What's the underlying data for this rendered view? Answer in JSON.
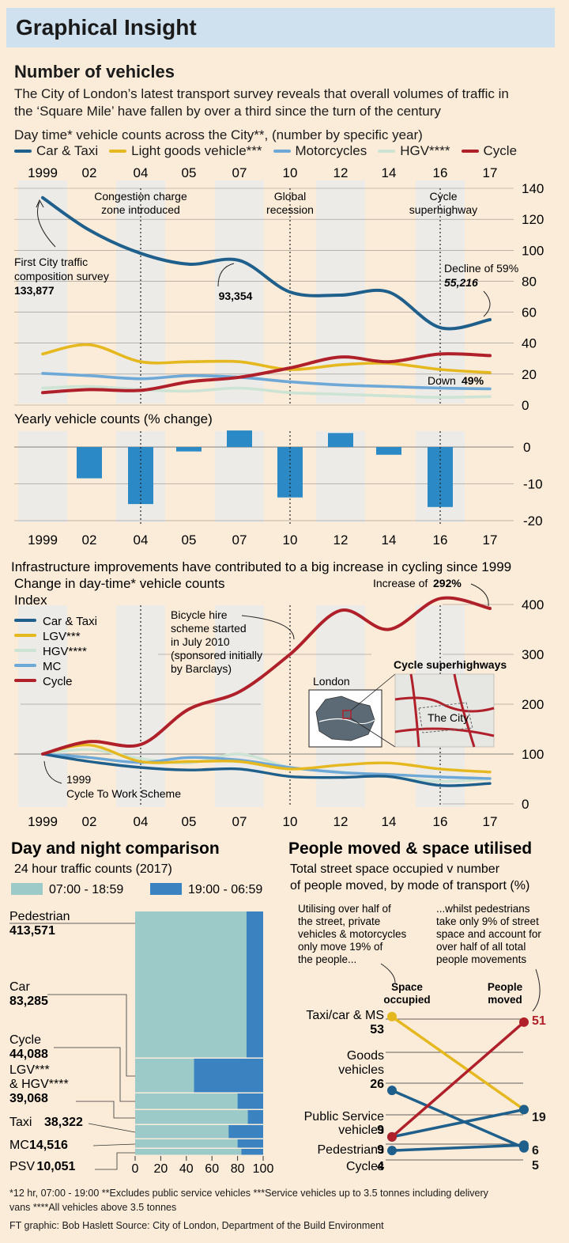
{
  "header": {
    "title": "Graphical Insight"
  },
  "section1": {
    "title": "Number of vehicles",
    "intro_line1": "The City of London’s latest transport survey reveals that overall volumes of traffic in",
    "intro_line2": "the ‘Square Mile’ have fallen by over a third since the turn of the century",
    "subtitle": "Day time* vehicle counts across the City**, (number by specific year)"
  },
  "legend": [
    {
      "label": "Car & Taxi",
      "color": "#1f5f8b"
    },
    {
      "label": "Light goods vehicle***",
      "color": "#e4b81e"
    },
    {
      "label": "Motorcycles",
      "color": "#6ea8d6"
    },
    {
      "label": "HGV****",
      "color": "#cde3d4"
    },
    {
      "label": "Cycle",
      "color": "#b0202a"
    }
  ],
  "colors": {
    "car": "#1f5f8b",
    "lgv": "#e4b81e",
    "mc": "#6ea8d6",
    "hgv": "#cde3d4",
    "cycle": "#b0202a",
    "bar": "#2b8ac6",
    "day": "#9ccac9",
    "night": "#3b82c0",
    "band": "#ecebe8",
    "bg": "#fbecd9"
  },
  "chart_data": [
    {
      "type": "line",
      "title": "Day time* vehicle counts across the City**, (number by specific year)",
      "x": [
        "1999",
        "02",
        "04",
        "05",
        "07",
        "10",
        "12",
        "14",
        "16",
        "17"
      ],
      "ylim": [
        0,
        140
      ],
      "yticks": [
        "0",
        "20",
        "40",
        "60",
        "80",
        "100",
        "120",
        "140"
      ],
      "series": [
        {
          "name": "Car & Taxi",
          "values": [
            133.9,
            113,
            98,
            91,
            93.4,
            73,
            71,
            73,
            50,
            55.2
          ]
        },
        {
          "name": "Light goods vehicle***",
          "values": [
            33,
            39,
            28,
            28,
            28,
            23,
            26,
            27,
            23,
            21
          ]
        },
        {
          "name": "Motorcycles",
          "values": [
            20.5,
            19,
            17,
            19,
            18,
            15,
            13,
            12,
            11,
            10.5
          ]
        },
        {
          "name": "HGV****",
          "values": [
            11,
            12,
            10,
            9,
            11,
            8,
            7,
            6,
            5,
            5.5
          ]
        },
        {
          "name": "Cycle",
          "values": [
            8,
            10,
            9.5,
            15,
            18,
            24,
            31,
            28,
            33,
            32
          ]
        }
      ],
      "annotations": {
        "congestion": "Congestion charge zone introduced",
        "recession": "Global recession",
        "superhighway": "Cycle superhighway",
        "first_survey": "First City traffic composition survey",
        "first_value": "133,877",
        "peak07": "93,354",
        "decline_label": "Decline of 59%",
        "decline_value": "55,216",
        "down_label": "Down",
        "down_value": "49%"
      }
    },
    {
      "type": "bar",
      "title": "Yearly vehicle counts (% change)",
      "categories": [
        "1999",
        "02",
        "04",
        "05",
        "07",
        "10",
        "12",
        "14",
        "16",
        "17"
      ],
      "values": [
        null,
        -8.5,
        -15.5,
        -1.2,
        4.5,
        -13.7,
        3.8,
        -2.1,
        -16.3,
        null
      ],
      "ylim": [
        -20,
        5
      ],
      "yticks": [
        "0",
        "-10",
        "-20"
      ]
    },
    {
      "type": "line",
      "title": "Infrastructure improvements have contributed to a big increase in cycling since 1999",
      "subtitle": "Change in day-time* vehicle counts",
      "ylabel": "Index",
      "x": [
        "1999",
        "02",
        "04",
        "05",
        "07",
        "10",
        "12",
        "14",
        "16",
        "17"
      ],
      "ylim": [
        0,
        400
      ],
      "yticks": [
        "0",
        "100",
        "200",
        "300",
        "400"
      ],
      "series": [
        {
          "name": "Car & Taxi",
          "values": [
            100,
            85,
            73,
            68,
            70,
            55,
            53,
            55,
            37,
            41
          ]
        },
        {
          "name": "LGV***",
          "values": [
            100,
            118,
            85,
            85,
            85,
            70,
            78,
            82,
            70,
            64
          ]
        },
        {
          "name": "HGV****",
          "values": [
            100,
            109,
            91,
            82,
            100,
            73,
            64,
            55,
            45,
            50
          ]
        },
        {
          "name": "MC",
          "values": [
            100,
            93,
            83,
            93,
            88,
            73,
            63,
            59,
            54,
            51
          ]
        },
        {
          "name": "Cycle",
          "values": [
            100,
            125,
            119,
            190,
            225,
            300,
            388,
            350,
            412,
            392
          ]
        }
      ],
      "annotations": {
        "increase_label": "Increase of",
        "increase_value": "292%",
        "bike_hire": [
          "Bicycle hire",
          "scheme started",
          "in July 2010",
          "(sponsored initially",
          "by Barclays)"
        ],
        "cycle_to_work": [
          "1999",
          "Cycle To Work Scheme"
        ],
        "map_london": "London",
        "map_superhighways": "Cycle superhighways",
        "map_city": "The City"
      }
    },
    {
      "type": "bar",
      "title": "Day and night comparison",
      "subtitle": "24 hour traffic counts (2017)",
      "legend": [
        "07:00 - 18:59",
        "19:00 - 06:59"
      ],
      "categories": [
        "Pedestrian",
        "Car",
        "Cycle",
        "LGV*** & HGV****",
        "Taxi",
        "MC",
        "PSV"
      ],
      "totals": [
        "413,571",
        "83,285",
        "44,088",
        "39,068",
        "38,322",
        "14,516",
        "10,051"
      ],
      "series": [
        {
          "name": "07:00 - 18:59",
          "values": [
            87,
            46,
            80,
            88,
            73,
            80,
            83
          ]
        },
        {
          "name": "19:00 - 06:59",
          "values": [
            13,
            54,
            20,
            12,
            27,
            20,
            17
          ]
        }
      ],
      "xticks": [
        "0",
        "20",
        "40",
        "60",
        "80",
        "100"
      ]
    },
    {
      "type": "line",
      "title": "People moved & space utilised",
      "subtitle": "Total street space occupied v number of people moved, by mode of transport (%)",
      "x": [
        "Space occupied",
        "People moved"
      ],
      "ylim": [
        0,
        55
      ],
      "series": [
        {
          "name": "Taxi/car & MS",
          "values": [
            53,
            19
          ]
        },
        {
          "name": "Goods vehicles",
          "values": [
            26,
            5
          ]
        },
        {
          "name": "Public Service vehicles",
          "values": [
            9,
            19
          ]
        },
        {
          "name": "Pedestrians",
          "values": [
            9,
            51
          ]
        },
        {
          "name": "Cycles",
          "values": [
            4,
            6
          ]
        }
      ],
      "labels_left": [
        {
          "lines": [
            "Taxi/car & MS"
          ],
          "value": "53"
        },
        {
          "lines": [
            "Goods",
            "vehicles"
          ],
          "value": "26"
        },
        {
          "lines": [
            "Public Service",
            "vehicles"
          ],
          "value": "9"
        },
        {
          "lines": [
            "Pedestrians"
          ],
          "value": "9"
        },
        {
          "lines": [
            "Cycles"
          ],
          "value": "4"
        }
      ],
      "labels_right": [
        "51",
        "19",
        "6",
        "5"
      ],
      "note_left": [
        "Utilising over half of",
        "the street, private",
        "vehicles & motorcycles",
        "only move 19% of",
        "the people..."
      ],
      "note_right": [
        "...whilst pedestrians",
        "take only 9% of street",
        "space and account for",
        "over half of all total",
        "people movements"
      ],
      "col_left": [
        "Space",
        "occupied"
      ],
      "col_right": [
        "People",
        "moved"
      ]
    }
  ],
  "footnotes": {
    "line1": "*12 hr, 07:00 - 19:00 **Excludes public service vehicles ***Service vehicles up to 3.5 tonnes including delivery",
    "line2": "vans  ****All vehicles above 3.5 tonnes",
    "credit": "FT graphic: Bob Haslett  Source: City of London, Department of the Build Environment"
  }
}
